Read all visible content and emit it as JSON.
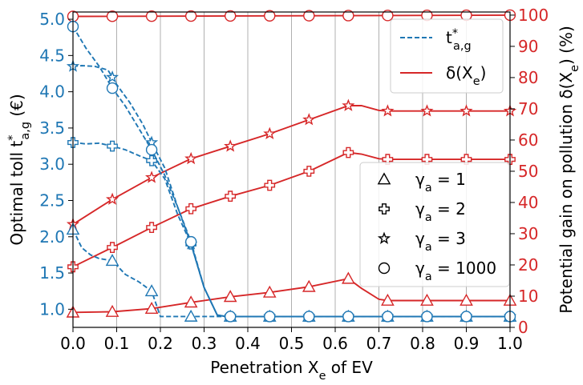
{
  "chart_data": {
    "type": "line",
    "xlabel": "Penetration X_e of EV",
    "ylabel_left": "Optimal toll t*_{a,g} (€)",
    "ylabel_right": "Potential gain on pollution δ(X_e) (%)",
    "xlim": [
      0,
      1
    ],
    "ylim_left": [
      0.75,
      5.1
    ],
    "ylim_right": [
      0,
      101
    ],
    "xticks": [
      "0.0",
      "0.1",
      "0.2",
      "0.3",
      "0.4",
      "0.5",
      "0.6",
      "0.7",
      "0.8",
      "0.9",
      "1.0"
    ],
    "yticks_left": [
      "1.0",
      "1.5",
      "2.0",
      "2.5",
      "3.0",
      "3.5",
      "4.0",
      "4.5",
      "5.0"
    ],
    "yticks_right": [
      "0",
      "10",
      "20",
      "30",
      "40",
      "50",
      "60",
      "70",
      "80",
      "90",
      "100"
    ],
    "grid": "vertical",
    "colors": {
      "toll": "#1f77b4",
      "gain": "#d62728"
    },
    "legend_top": {
      "placement": "upper-right",
      "entries": [
        {
          "label": "t*_{a,g}",
          "style": "dashed",
          "color": "#1f77b4"
        },
        {
          "label": "δ(X_e)",
          "style": "solid",
          "color": "#d62728"
        }
      ]
    },
    "legend_markers": {
      "placement": "center-right",
      "entries": [
        {
          "label": "γ_a = 1",
          "marker": "triangle"
        },
        {
          "label": "γ_a = 2",
          "marker": "plus"
        },
        {
          "label": "γ_a = 3",
          "marker": "star"
        },
        {
          "label": "γ_a = 1000",
          "marker": "circle"
        }
      ]
    },
    "toll_series": [
      {
        "name": "γ_a = 1",
        "marker": "triangle",
        "x": [
          0.0,
          0.02,
          0.04,
          0.06,
          0.08,
          0.09,
          0.12,
          0.15,
          0.18,
          0.2,
          0.27,
          0.3,
          0.36,
          1.0
        ],
        "y": [
          2.1,
          1.85,
          1.75,
          1.7,
          1.68,
          1.67,
          1.48,
          1.38,
          1.25,
          0.9,
          0.9,
          0.9,
          0.9,
          0.9
        ],
        "marker_x": [
          0.0,
          0.09,
          0.18,
          0.27,
          0.36,
          0.45,
          0.54,
          0.63,
          0.72,
          0.81,
          0.9,
          1.0
        ]
      },
      {
        "name": "γ_a = 2",
        "marker": "plus",
        "x": [
          0.0,
          0.03,
          0.06,
          0.09,
          0.12,
          0.15,
          0.18,
          0.21,
          0.24,
          0.27,
          0.3,
          0.33,
          0.35,
          1.0
        ],
        "y": [
          3.3,
          3.28,
          3.29,
          3.25,
          3.2,
          3.12,
          3.05,
          2.8,
          2.3,
          1.9,
          1.3,
          0.92,
          0.9,
          0.9
        ],
        "marker_x": [
          0.0,
          0.09,
          0.18,
          0.27,
          0.36,
          0.45,
          0.54,
          0.63,
          0.72,
          0.81,
          0.9,
          1.0
        ]
      },
      {
        "name": "γ_a = 3",
        "marker": "star",
        "x": [
          0.0,
          0.02,
          0.05,
          0.08,
          0.1,
          0.13,
          0.16,
          0.18,
          0.21,
          0.24,
          0.27,
          0.3,
          0.33,
          0.35,
          1.0
        ],
        "y": [
          4.35,
          4.36,
          4.35,
          4.3,
          4.1,
          3.85,
          3.55,
          3.3,
          2.95,
          2.4,
          1.9,
          1.3,
          0.92,
          0.9,
          0.9
        ],
        "marker_x": [
          0.0,
          0.09,
          0.18,
          0.27,
          0.36,
          0.45,
          0.54,
          0.63,
          0.72,
          0.81,
          0.9,
          1.0
        ]
      },
      {
        "name": "γ_a = 1000",
        "marker": "circle",
        "x": [
          0.0,
          0.03,
          0.06,
          0.09,
          0.12,
          0.15,
          0.18,
          0.21,
          0.24,
          0.27,
          0.3,
          0.33,
          0.35,
          1.0
        ],
        "y": [
          4.9,
          4.6,
          4.35,
          4.05,
          3.8,
          3.5,
          3.2,
          2.85,
          2.4,
          1.93,
          1.3,
          0.92,
          0.9,
          0.9
        ],
        "marker_x": [
          0.0,
          0.09,
          0.18,
          0.27,
          0.36,
          0.45,
          0.54,
          0.63,
          0.72,
          0.81,
          0.9,
          1.0
        ]
      }
    ],
    "gain_series": [
      {
        "name": "γ_a = 1",
        "marker": "triangle",
        "x": [
          0.0,
          0.09,
          0.18,
          0.27,
          0.36,
          0.45,
          0.54,
          0.63,
          0.66,
          0.7,
          0.72,
          0.81,
          0.9,
          1.0
        ],
        "y": [
          4.8,
          5.0,
          6.0,
          8.0,
          9.8,
          11.2,
          13.0,
          15.6,
          12.5,
          9.0,
          8.6,
          8.6,
          8.6,
          8.6
        ],
        "marker_x": [
          0.0,
          0.09,
          0.18,
          0.27,
          0.36,
          0.45,
          0.54,
          0.63,
          0.72,
          0.81,
          0.9,
          1.0
        ]
      },
      {
        "name": "γ_a = 2",
        "marker": "plus",
        "x": [
          0.0,
          0.09,
          0.18,
          0.27,
          0.36,
          0.45,
          0.54,
          0.63,
          0.66,
          0.7,
          0.72,
          0.81,
          0.9,
          1.0
        ],
        "y": [
          19.4,
          25.6,
          32.0,
          38.0,
          42.0,
          45.5,
          50.0,
          56.0,
          55.5,
          54.0,
          53.8,
          53.8,
          53.8,
          53.8
        ],
        "marker_x": [
          0.0,
          0.09,
          0.18,
          0.27,
          0.36,
          0.45,
          0.54,
          0.63,
          0.72,
          0.81,
          0.9,
          1.0
        ]
      },
      {
        "name": "γ_a = 3",
        "marker": "star",
        "x": [
          0.0,
          0.09,
          0.18,
          0.27,
          0.36,
          0.45,
          0.54,
          0.63,
          0.66,
          0.7,
          0.72,
          0.81,
          0.9,
          1.0
        ],
        "y": [
          33.0,
          41.0,
          48.0,
          54.0,
          58.0,
          62.0,
          66.5,
          71.0,
          71.0,
          69.5,
          69.3,
          69.3,
          69.3,
          69.3
        ],
        "marker_x": [
          0.0,
          0.09,
          0.18,
          0.27,
          0.36,
          0.45,
          0.54,
          0.63,
          0.72,
          0.81,
          0.9,
          1.0
        ]
      },
      {
        "name": "γ_a = 1000",
        "marker": "circle",
        "x": [
          0.0,
          1.0
        ],
        "y": [
          99.6,
          100.0
        ],
        "marker_x": [
          0.0,
          0.09,
          0.18,
          0.27,
          0.36,
          0.45,
          0.54,
          0.63,
          0.72,
          0.81,
          0.9,
          1.0
        ]
      }
    ]
  }
}
